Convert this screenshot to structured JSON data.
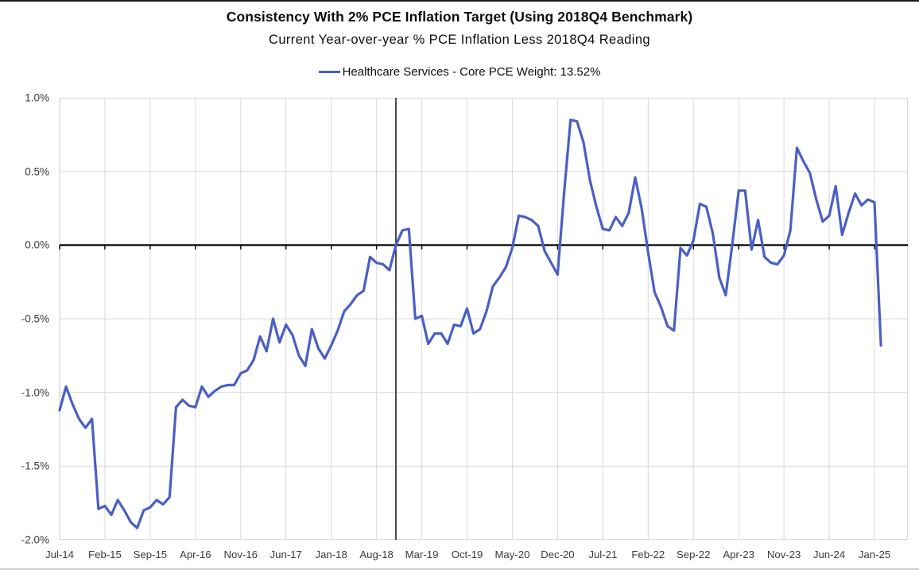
{
  "chart_data": {
    "type": "line",
    "title": "Consistency With 2% PCE Inflation Target (Using 2018Q4 Benchmark)",
    "subtitle": "Current Year-over-year % PCE Inflation Less 2018Q4 Reading",
    "legend": "Healthcare Services - Core PCE Weight: 13.52%",
    "legend_position": "top-center",
    "series_name": "Healthcare Services - Core PCE Weight: 13.52%",
    "series_color": "#4A5FC5",
    "grid": true,
    "gridline_color": "#D9D9D9",
    "axis_color": "#000000",
    "ylabel": "",
    "xlabel": "",
    "ylim": [
      -2.0,
      1.0
    ],
    "y_tick_step": 0.5,
    "y_tick_labels": [
      "1.0%",
      "0.5%",
      "0.0%",
      "-0.5%",
      "-1.0%",
      "-1.5%",
      "-2.0%"
    ],
    "x_tick_labels": [
      "Jul-14",
      "Feb-15",
      "Sep-15",
      "Apr-16",
      "Nov-16",
      "Jun-17",
      "Jan-18",
      "Aug-18",
      "Mar-19",
      "Oct-19",
      "May-20",
      "Dec-20",
      "Jul-21",
      "Feb-22",
      "Sep-22",
      "Apr-23",
      "Nov-23",
      "Jun-24",
      "Jan-25"
    ],
    "months_per_tick": 7,
    "frequency": "monthly",
    "start": "Jul-14",
    "end": "Feb-25",
    "benchmark_vline_month": "Nov-18",
    "benchmark_vline_index": 52,
    "zero_axis_highlighted": true,
    "values": [
      -1.12,
      -0.96,
      -1.08,
      -1.18,
      -1.24,
      -1.18,
      -1.79,
      -1.77,
      -1.83,
      -1.73,
      -1.8,
      -1.88,
      -1.92,
      -1.8,
      -1.78,
      -1.73,
      -1.76,
      -1.71,
      -1.1,
      -1.05,
      -1.09,
      -1.1,
      -0.96,
      -1.03,
      -0.99,
      -0.96,
      -0.95,
      -0.95,
      -0.87,
      -0.85,
      -0.78,
      -0.62,
      -0.72,
      -0.5,
      -0.66,
      -0.54,
      -0.61,
      -0.75,
      -0.82,
      -0.57,
      -0.7,
      -0.77,
      -0.68,
      -0.58,
      -0.45,
      -0.4,
      -0.34,
      -0.31,
      -0.08,
      -0.12,
      -0.13,
      -0.17,
      0.0,
      0.1,
      0.11,
      -0.5,
      -0.48,
      -0.67,
      -0.6,
      -0.6,
      -0.67,
      -0.54,
      -0.55,
      -0.43,
      -0.6,
      -0.57,
      -0.45,
      -0.28,
      -0.22,
      -0.15,
      -0.02,
      0.2,
      0.19,
      0.17,
      0.13,
      -0.04,
      -0.12,
      -0.2,
      0.35,
      0.85,
      0.84,
      0.7,
      0.44,
      0.26,
      0.11,
      0.1,
      0.19,
      0.13,
      0.22,
      0.46,
      0.25,
      -0.05,
      -0.32,
      -0.42,
      -0.55,
      -0.58,
      -0.02,
      -0.07,
      0.03,
      0.28,
      0.26,
      0.08,
      -0.22,
      -0.34,
      0.0,
      0.37,
      0.37,
      -0.03,
      0.17,
      -0.08,
      -0.12,
      -0.13,
      -0.07,
      0.1,
      0.66,
      0.57,
      0.49,
      0.31,
      0.16,
      0.2,
      0.4,
      0.07,
      0.22,
      0.35,
      0.27,
      0.31,
      0.29,
      -0.68
    ]
  }
}
